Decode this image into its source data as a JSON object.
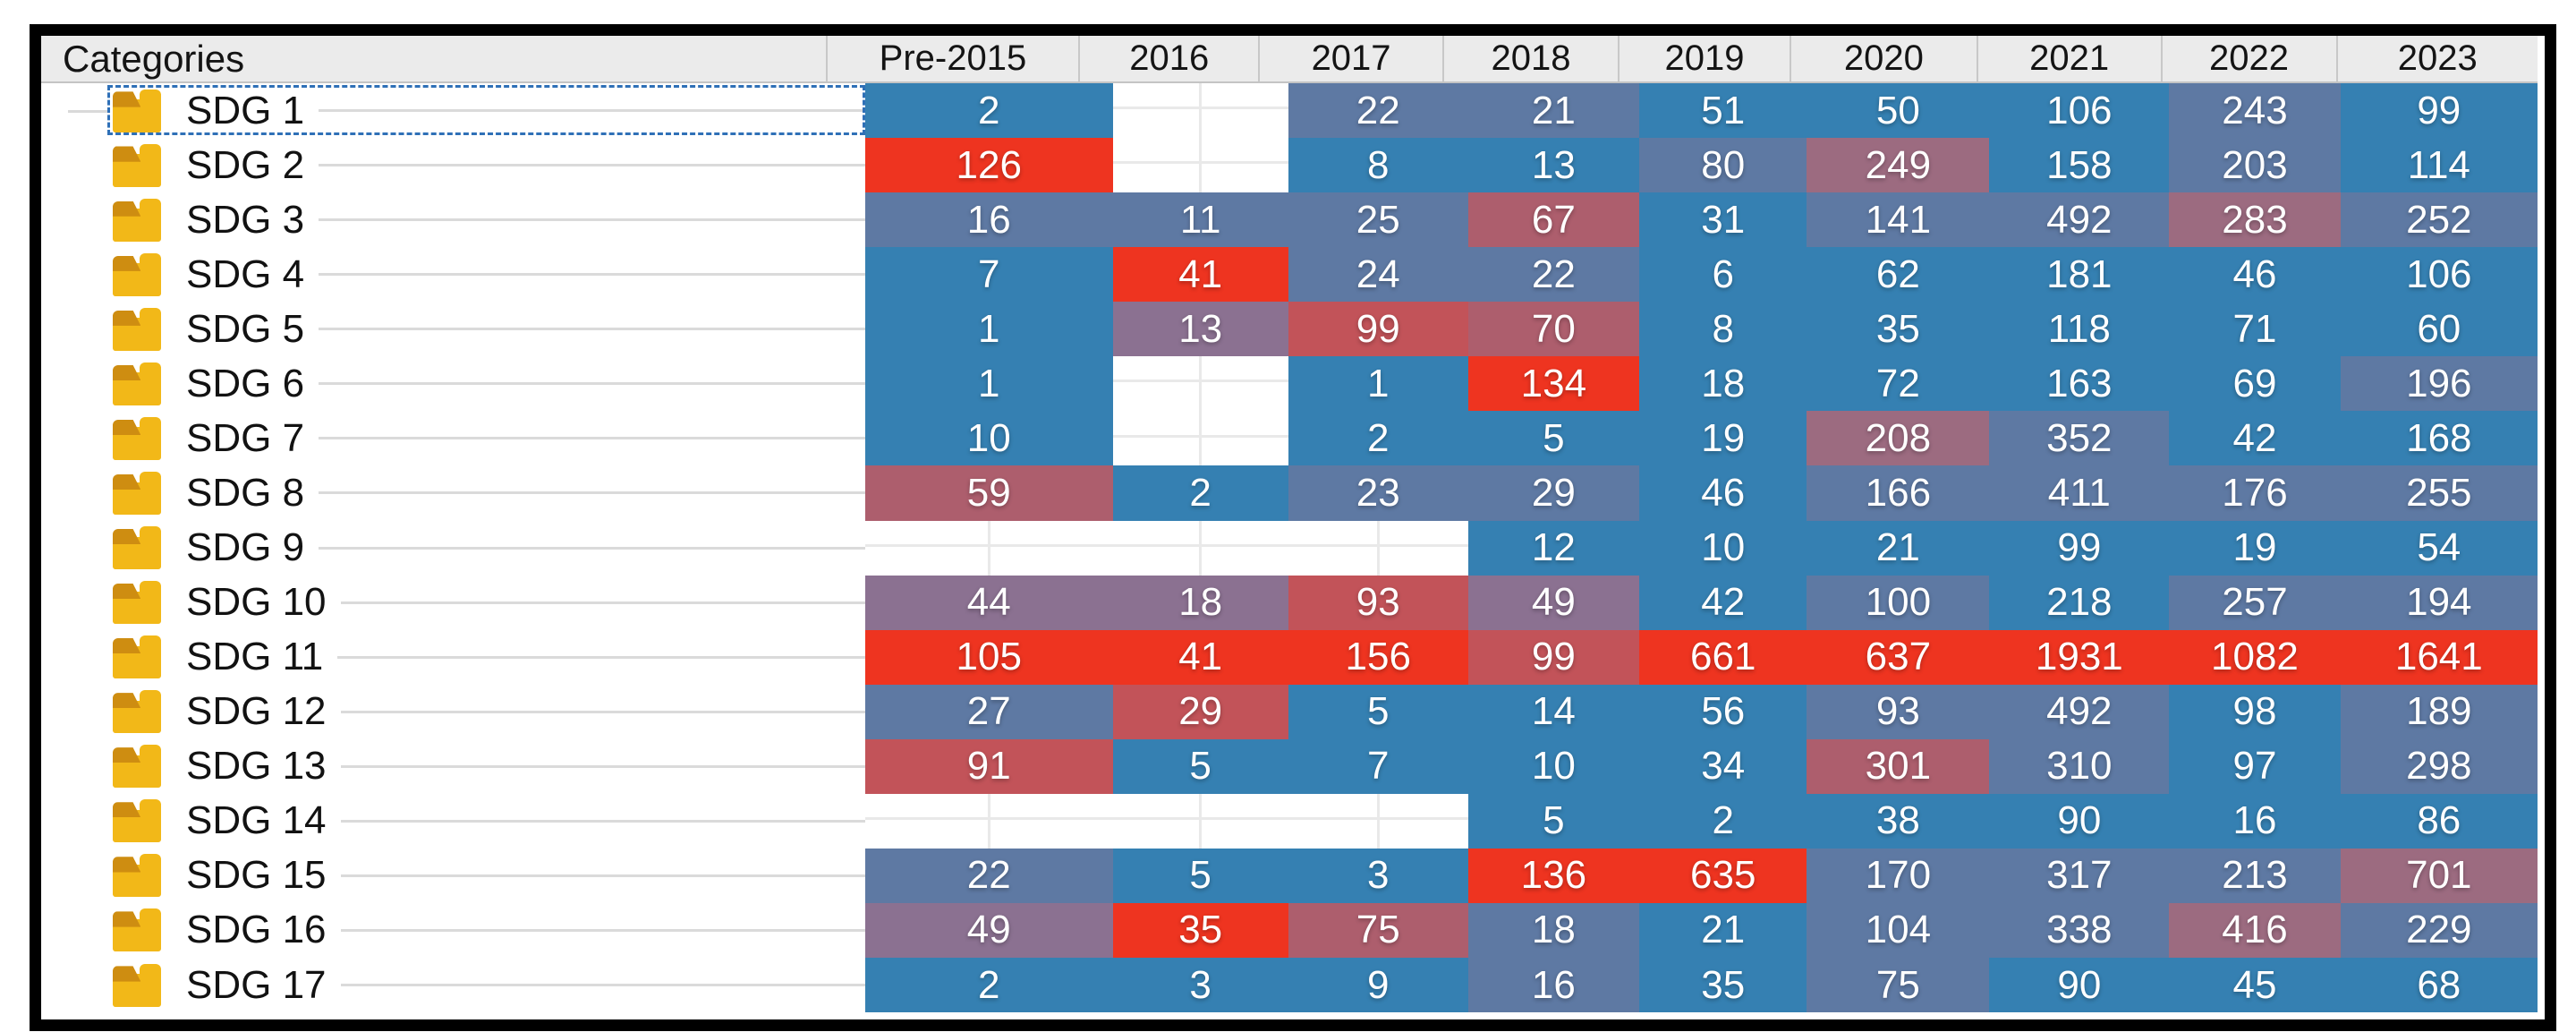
{
  "header": {
    "categories_label": "Categories"
  },
  "selection": {
    "selected_row": "SDG 1"
  },
  "palette": {
    "blue": "#3580B2",
    "blue_gray": "#5E79A3",
    "gray_purple": "#8B7191",
    "mauve": "#9C6B80",
    "brick": "#AD5E6D",
    "red_brick": "#C25359",
    "red": "#EE3420"
  },
  "folder_icon": {
    "body_color": "#F2B818",
    "flap_color": "#CE8D11"
  },
  "chart_data": {
    "type": "heatmap",
    "columns": [
      "Pre-2015",
      "2016",
      "2017",
      "2018",
      "2019",
      "2020",
      "2021",
      "2022",
      "2023"
    ],
    "rows": [
      "SDG 1",
      "SDG 2",
      "SDG 3",
      "SDG 4",
      "SDG 5",
      "SDG 6",
      "SDG 7",
      "SDG 8",
      "SDG 9",
      "SDG 10",
      "SDG 11",
      "SDG 12",
      "SDG 13",
      "SDG 14",
      "SDG 15",
      "SDG 16",
      "SDG 17"
    ],
    "values": [
      [
        2,
        null,
        22,
        21,
        51,
        50,
        106,
        243,
        99
      ],
      [
        126,
        null,
        8,
        13,
        80,
        249,
        158,
        203,
        114
      ],
      [
        16,
        11,
        25,
        67,
        31,
        141,
        492,
        283,
        252
      ],
      [
        7,
        41,
        24,
        22,
        6,
        62,
        181,
        46,
        106
      ],
      [
        1,
        13,
        99,
        70,
        8,
        35,
        118,
        71,
        60
      ],
      [
        1,
        null,
        1,
        134,
        18,
        72,
        163,
        69,
        196
      ],
      [
        10,
        null,
        2,
        5,
        19,
        208,
        352,
        42,
        168
      ],
      [
        59,
        2,
        23,
        29,
        46,
        166,
        411,
        176,
        255
      ],
      [
        null,
        null,
        null,
        12,
        10,
        21,
        99,
        19,
        54
      ],
      [
        44,
        18,
        93,
        49,
        42,
        100,
        218,
        257,
        194
      ],
      [
        105,
        41,
        156,
        99,
        661,
        637,
        1931,
        1082,
        1641
      ],
      [
        27,
        29,
        5,
        14,
        56,
        93,
        492,
        98,
        189
      ],
      [
        91,
        5,
        7,
        10,
        34,
        301,
        310,
        97,
        298
      ],
      [
        null,
        null,
        null,
        5,
        2,
        38,
        90,
        16,
        86
      ],
      [
        22,
        5,
        3,
        136,
        635,
        170,
        317,
        213,
        701
      ],
      [
        49,
        35,
        75,
        18,
        21,
        104,
        338,
        416,
        229
      ],
      [
        2,
        3,
        9,
        16,
        35,
        75,
        90,
        45,
        68
      ]
    ],
    "cell_colors": [
      [
        "blue",
        null,
        "blue_gray",
        "blue_gray",
        "blue",
        "blue",
        "blue",
        "blue_gray",
        "blue"
      ],
      [
        "red",
        null,
        "blue",
        "blue",
        "blue_gray",
        "mauve",
        "blue",
        "blue_gray",
        "blue"
      ],
      [
        "blue_gray",
        "blue_gray",
        "blue_gray",
        "brick",
        "blue",
        "blue_gray",
        "blue_gray",
        "mauve",
        "blue_gray"
      ],
      [
        "blue",
        "red",
        "blue_gray",
        "blue_gray",
        "blue",
        "blue",
        "blue",
        "blue",
        "blue"
      ],
      [
        "blue",
        "gray_purple",
        "red_brick",
        "brick",
        "blue",
        "blue",
        "blue",
        "blue",
        "blue"
      ],
      [
        "blue",
        null,
        "blue",
        "red",
        "blue",
        "blue",
        "blue",
        "blue",
        "blue_gray"
      ],
      [
        "blue",
        null,
        "blue",
        "blue",
        "blue",
        "mauve",
        "blue_gray",
        "blue",
        "blue"
      ],
      [
        "brick",
        "blue",
        "blue_gray",
        "blue_gray",
        "blue",
        "blue_gray",
        "blue_gray",
        "blue_gray",
        "blue_gray"
      ],
      [
        null,
        null,
        null,
        "blue",
        "blue",
        "blue",
        "blue",
        "blue",
        "blue"
      ],
      [
        "gray_purple",
        "gray_purple",
        "red_brick",
        "gray_purple",
        "blue",
        "blue_gray",
        "blue",
        "blue_gray",
        "blue_gray"
      ],
      [
        "red",
        "red",
        "red",
        "red_brick",
        "red",
        "red",
        "red",
        "red",
        "red"
      ],
      [
        "blue_gray",
        "red_brick",
        "blue",
        "blue",
        "blue",
        "blue_gray",
        "blue_gray",
        "blue",
        "blue_gray"
      ],
      [
        "red_brick",
        "blue",
        "blue",
        "blue",
        "blue",
        "brick",
        "blue_gray",
        "blue",
        "blue_gray"
      ],
      [
        null,
        null,
        null,
        "blue",
        "blue",
        "blue",
        "blue",
        "blue",
        "blue"
      ],
      [
        "blue_gray",
        "blue",
        "blue",
        "red",
        "red",
        "blue_gray",
        "blue_gray",
        "blue_gray",
        "mauve"
      ],
      [
        "gray_purple",
        "red",
        "brick",
        "blue_gray",
        "blue",
        "blue_gray",
        "blue_gray",
        "mauve",
        "blue_gray"
      ],
      [
        "blue",
        "blue",
        "blue",
        "blue_gray",
        "blue",
        "blue_gray",
        "blue",
        "blue",
        "blue"
      ]
    ],
    "color_scale": {
      "low_color": "#3580B2",
      "high_color": "#EE3420",
      "description": "blue (low) to red (high), relative per year column"
    }
  }
}
